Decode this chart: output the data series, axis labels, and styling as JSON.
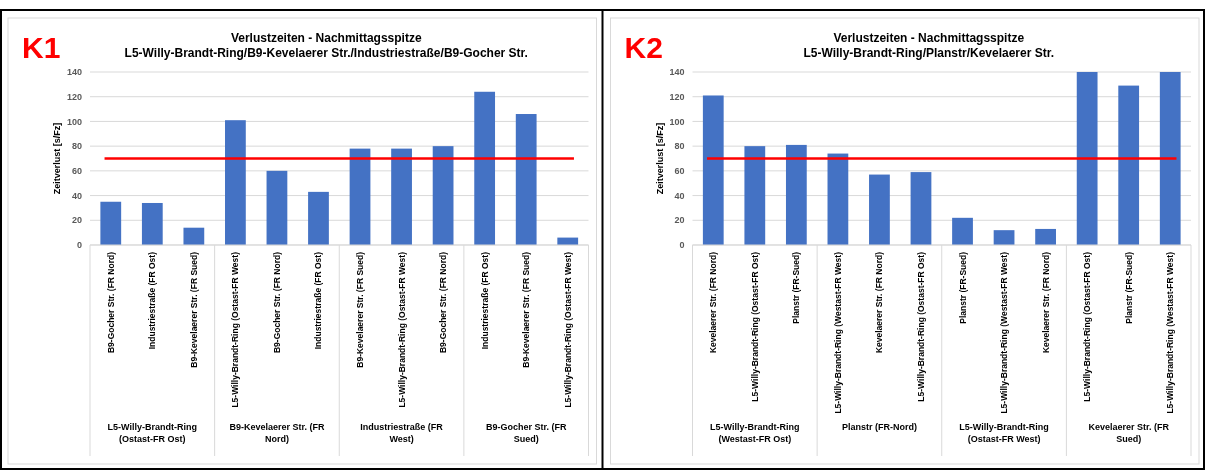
{
  "chart_data": [
    {
      "type": "bar",
      "title": "Verlustzeiten - Nachmittagsspitze",
      "subtitle": "L5-Willy-Brandt-Ring/B9-Kevelaerer Str./Industriestraße/B9-Gocher Str.",
      "ylabel": "Zeitverlust [s/Fz]",
      "categories": [
        "B9-Gocher Str. (FR Nord)",
        "Industriestraße (FR Ost)",
        "B9-Kevelaerer Str. (FR Sued)",
        "L5-Willy-Brandt-Ring (Ostast-FR West)",
        "B9-Gocher Str. (FR Nord)",
        "Industriestraße (FR Ost)",
        "B9-Kevelaerer Str. (FR Sued)",
        "L5-Willy-Brandt-Ring (Ostast-FR West)",
        "B9-Gocher Str. (FR Nord)",
        "Industriestraße (FR Ost)",
        "B9-Kevelaerer Str. (FR Sued)",
        "L5-Willy-Brandt-Ring (Ostast-FR West)"
      ],
      "values": [
        35,
        34,
        14,
        101,
        60,
        43,
        78,
        78,
        80,
        124,
        106,
        6
      ],
      "color": "#4472c4",
      "ylim": [
        0,
        140
      ],
      "yticks": [
        0,
        20,
        40,
        60,
        80,
        100,
        120,
        140
      ],
      "grid": "y",
      "ref_lines": [
        {
          "axis": "y",
          "value": 70,
          "color": "#ff0000"
        }
      ],
      "annotations": [
        "K1",
        "L5-Willy-Brandt-Ring (Ostast-FR Ost)",
        "B9-Kevelaerer Str. (FR Nord)",
        "Industriestraße (FR West)",
        "B9-Gocher Str. (FR Sued)"
      ]
    },
    {
      "type": "bar",
      "title": "Verlustzeiten - Nachmittagsspitze",
      "subtitle": "L5-Willy-Brandt-Ring/Planstr/Kevelaerer Str.",
      "ylabel": "Zeitverlust [s/Fz]",
      "categories": [
        "Kevelaerer Str. (FR Nord)",
        "L5-Willy-Brandt-Ring (Ostast-FR Ost)",
        "Planstr (FR-Sued)",
        "L5-Willy-Brandt-Ring (Westast-FR West)",
        "Kevelaerer Str. (FR Nord)",
        "L5-Willy-Brandt-Ring (Ostast-FR Ost)",
        "Planstr (FR-Sued)",
        "L5-Willy-Brandt-Ring (Westast-FR West)",
        "Kevelaerer Str. (FR Nord)",
        "L5-Willy-Brandt-Ring (Ostast-FR Ost)",
        "Planstr (FR-Sued)",
        "L5-Willy-Brandt-Ring (Westast-FR West)"
      ],
      "values": [
        121,
        80,
        81,
        74,
        57,
        59,
        22,
        12,
        13,
        140,
        129,
        140
      ],
      "color": "#4472c4",
      "ylim": [
        0,
        140
      ],
      "yticks": [
        0,
        20,
        40,
        60,
        80,
        100,
        120,
        140
      ],
      "grid": "y",
      "ref_lines": [
        {
          "axis": "y",
          "value": 70,
          "color": "#ff0000"
        }
      ],
      "annotations": [
        "K2",
        "L5-Willy-Brandt-Ring (Westast-FR Ost)",
        "Planstr (FR-Nord)",
        "L5-Willy-Brandt-Ring (Ostast-FR West)",
        "Kevelaerer Str. (FR Sued)"
      ]
    }
  ]
}
